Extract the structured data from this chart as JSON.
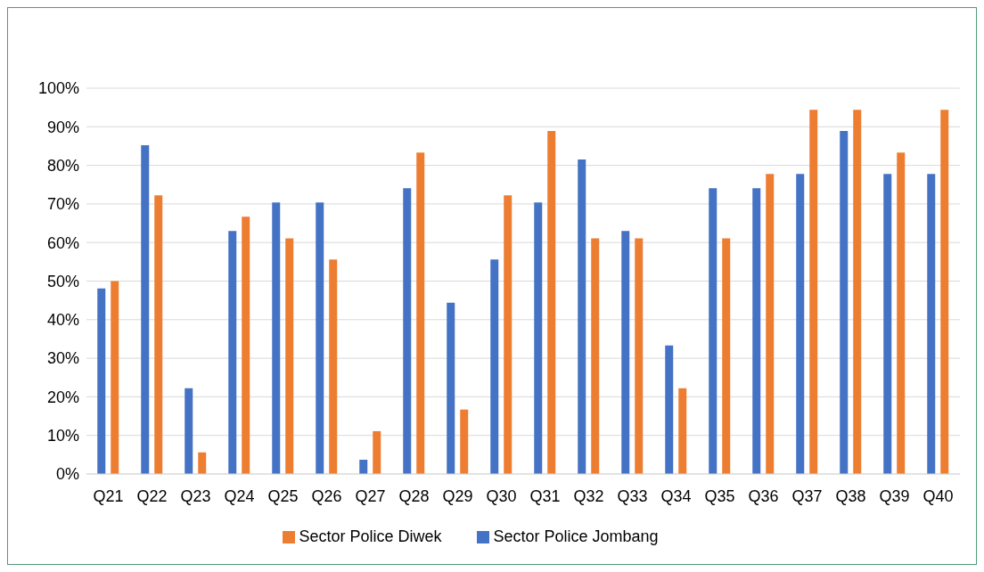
{
  "chart_data": {
    "type": "bar",
    "categories": [
      "Q21",
      "Q22",
      "Q23",
      "Q24",
      "Q25",
      "Q26",
      "Q27",
      "Q28",
      "Q29",
      "Q30",
      "Q31",
      "Q32",
      "Q33",
      "Q34",
      "Q35",
      "Q36",
      "Q37",
      "Q38",
      "Q39",
      "Q40"
    ],
    "series": [
      {
        "name": "Sector Police Jombang",
        "color": "#4472c4",
        "values": [
          48.1,
          85.2,
          22.2,
          63.0,
          70.4,
          70.4,
          3.7,
          74.1,
          44.4,
          55.6,
          70.4,
          81.5,
          63.0,
          33.3,
          74.1,
          74.1,
          77.8,
          88.9,
          77.8,
          77.8
        ]
      },
      {
        "name": "Sector Police Diwek",
        "color": "#ed7d31",
        "values": [
          50.0,
          72.2,
          5.6,
          66.7,
          61.1,
          55.6,
          11.1,
          83.3,
          16.7,
          72.2,
          88.9,
          61.1,
          61.1,
          22.2,
          61.1,
          77.8,
          94.4,
          94.4,
          83.3,
          94.4
        ]
      }
    ],
    "ylim": [
      0,
      100
    ],
    "yticks": [
      {
        "value": 0,
        "label": "0%"
      },
      {
        "value": 10,
        "label": "10%"
      },
      {
        "value": 20,
        "label": "20%"
      },
      {
        "value": 30,
        "label": "30%"
      },
      {
        "value": 40,
        "label": "40%"
      },
      {
        "value": 50,
        "label": "50%"
      },
      {
        "value": 60,
        "label": "60%"
      },
      {
        "value": 70,
        "label": "70%"
      },
      {
        "value": 80,
        "label": "80%"
      },
      {
        "value": 90,
        "label": "90%"
      },
      {
        "value": 100,
        "label": "100%"
      }
    ],
    "grid": "y",
    "legend": "bottom"
  }
}
